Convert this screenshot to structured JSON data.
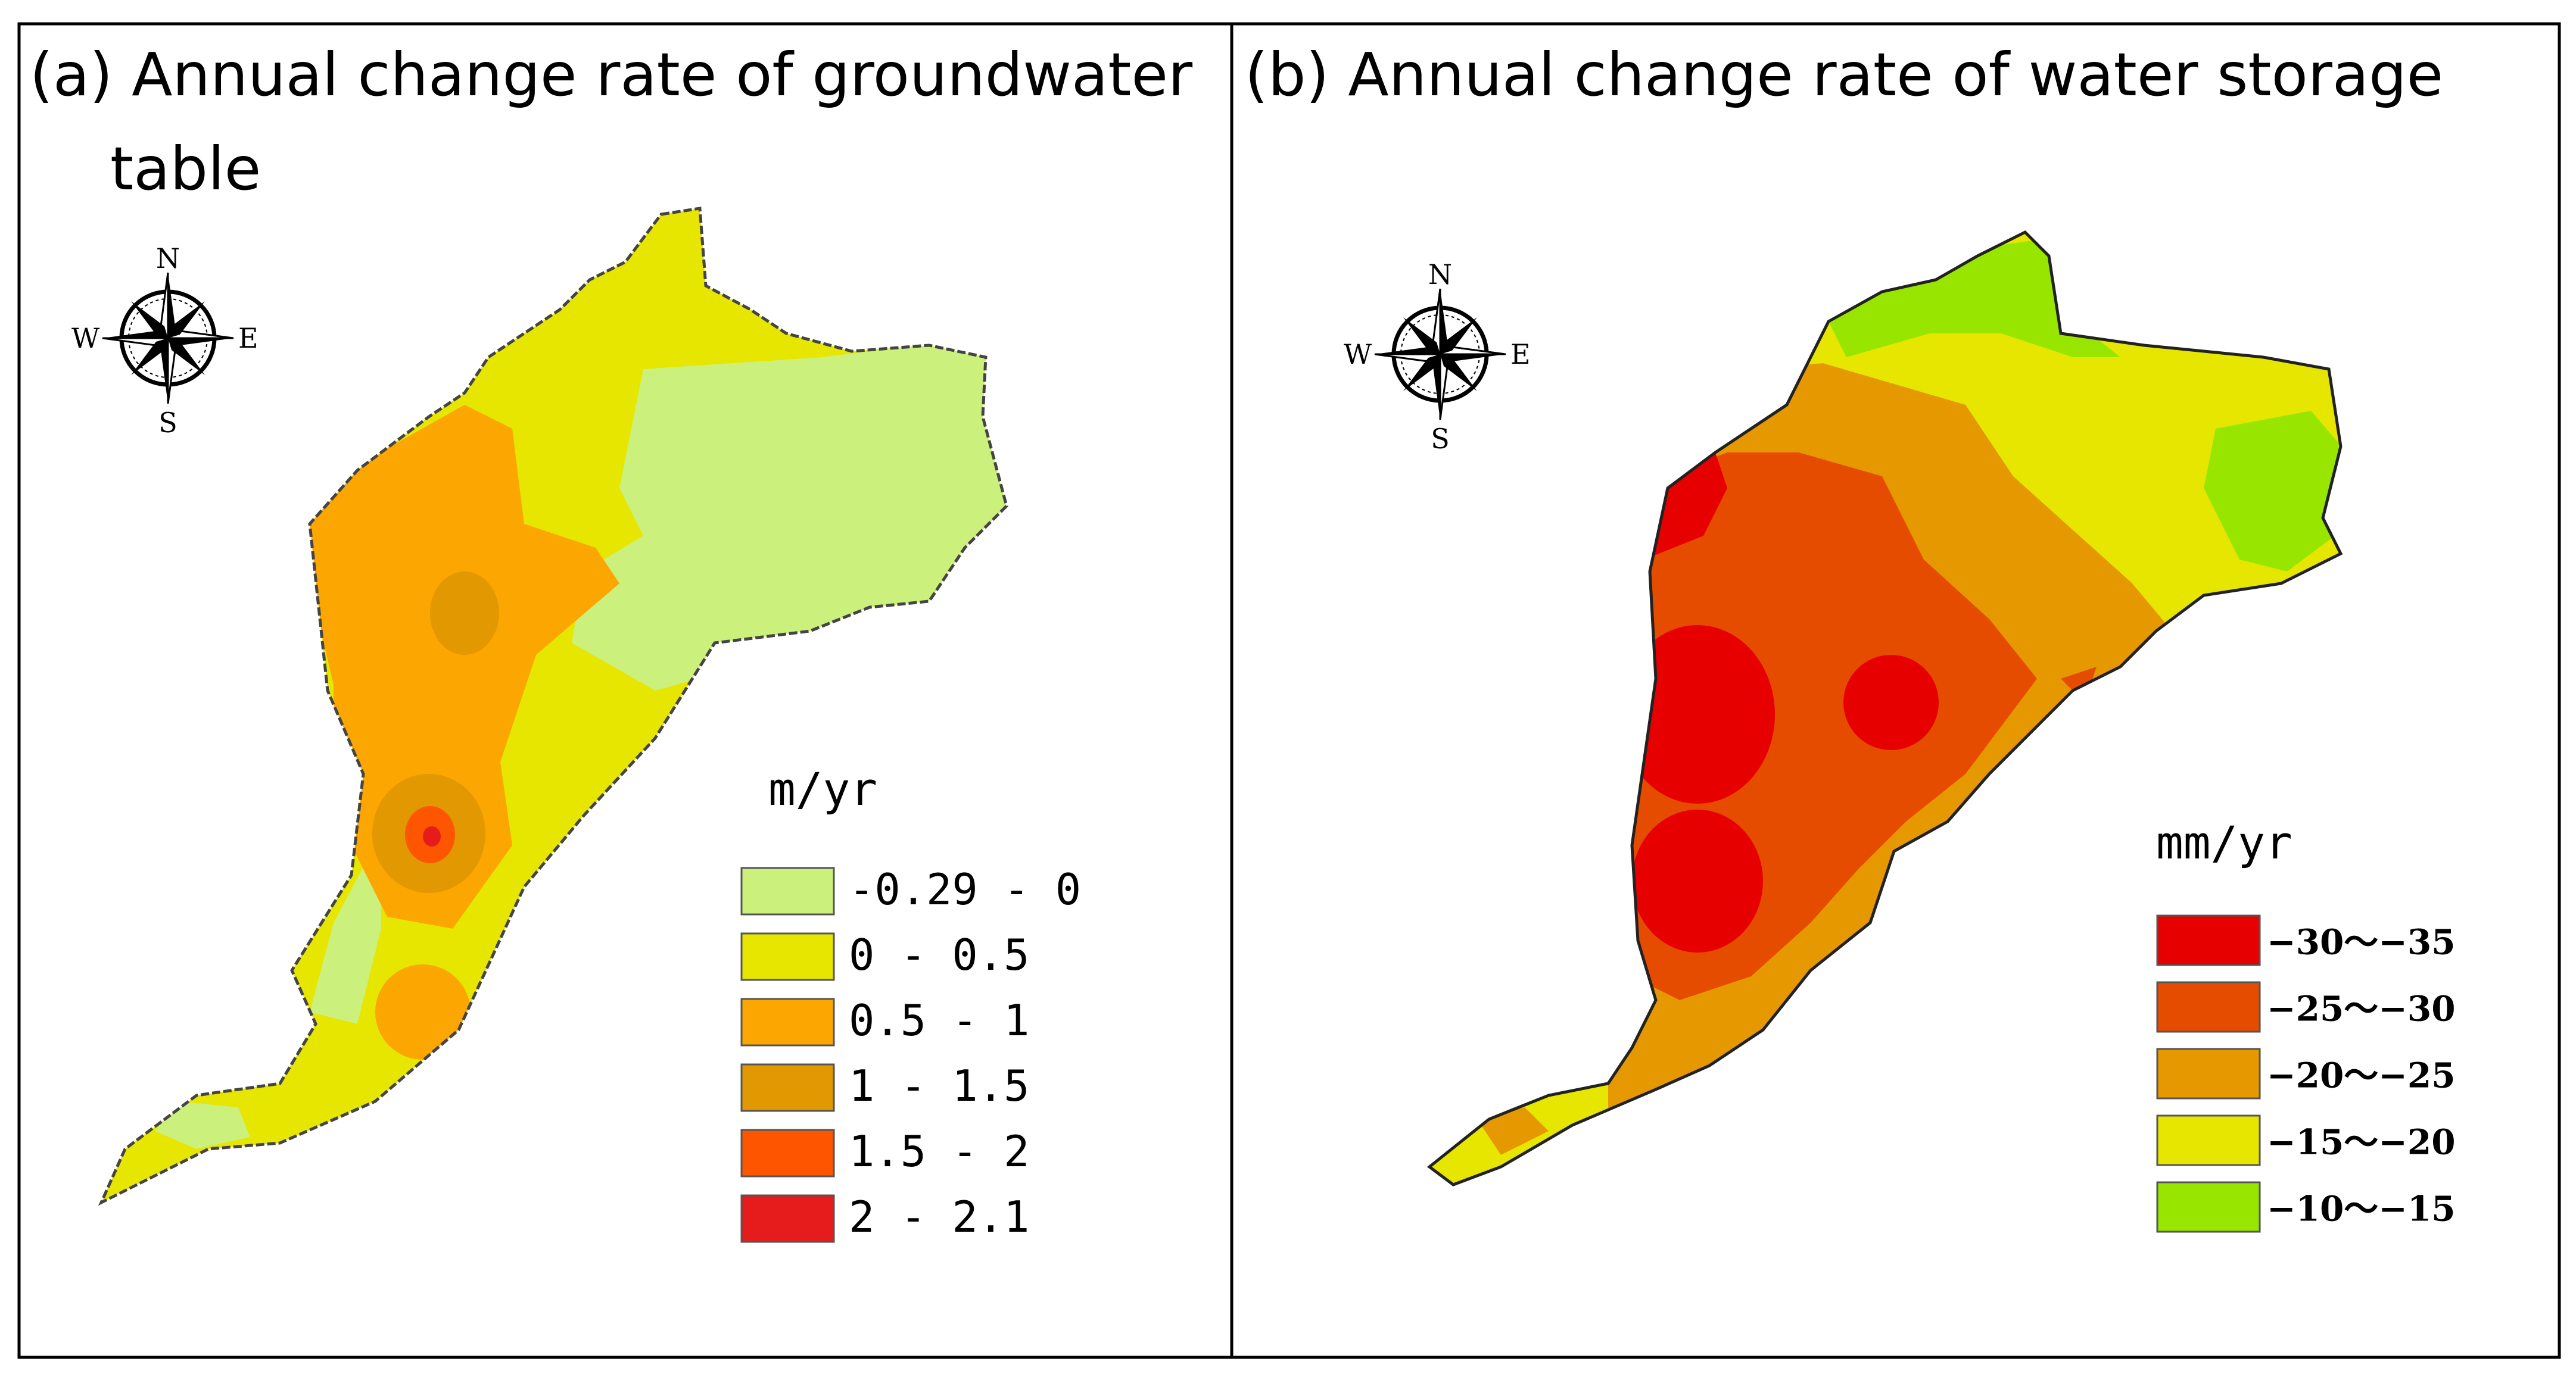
{
  "panel_a": {
    "title_line1": "(a) Annual change rate of groundwater",
    "title_line2": "table",
    "unit": "m/yr",
    "compass": {
      "n": "N",
      "s": "S",
      "e": "E",
      "w": "W"
    },
    "legend": [
      {
        "label": "-0.29 - 0",
        "color": "#ccf07c"
      },
      {
        "label": "0 - 0.5",
        "color": "#e6e600"
      },
      {
        "label": "0.5 - 1",
        "color": "#fca601"
      },
      {
        "label": "1 - 1.5",
        "color": "#e29800"
      },
      {
        "label": "1.5 - 2",
        "color": "#fd5500"
      },
      {
        "label": "2 - 2.1",
        "color": "#e61c1c"
      }
    ]
  },
  "panel_b": {
    "title": "(b) Annual change rate of water storage",
    "unit": "mm/yr",
    "compass": {
      "n": "N",
      "s": "S",
      "e": "E",
      "w": "W"
    },
    "legend": [
      {
        "label": "−30～−35",
        "color": "#e60000"
      },
      {
        "label": "−25～−30",
        "color": "#e64c00"
      },
      {
        "label": "−20～−25",
        "color": "#e69800"
      },
      {
        "label": "−15～−20",
        "color": "#e6e600"
      },
      {
        "label": "−10～−15",
        "color": "#98e600"
      }
    ]
  }
}
